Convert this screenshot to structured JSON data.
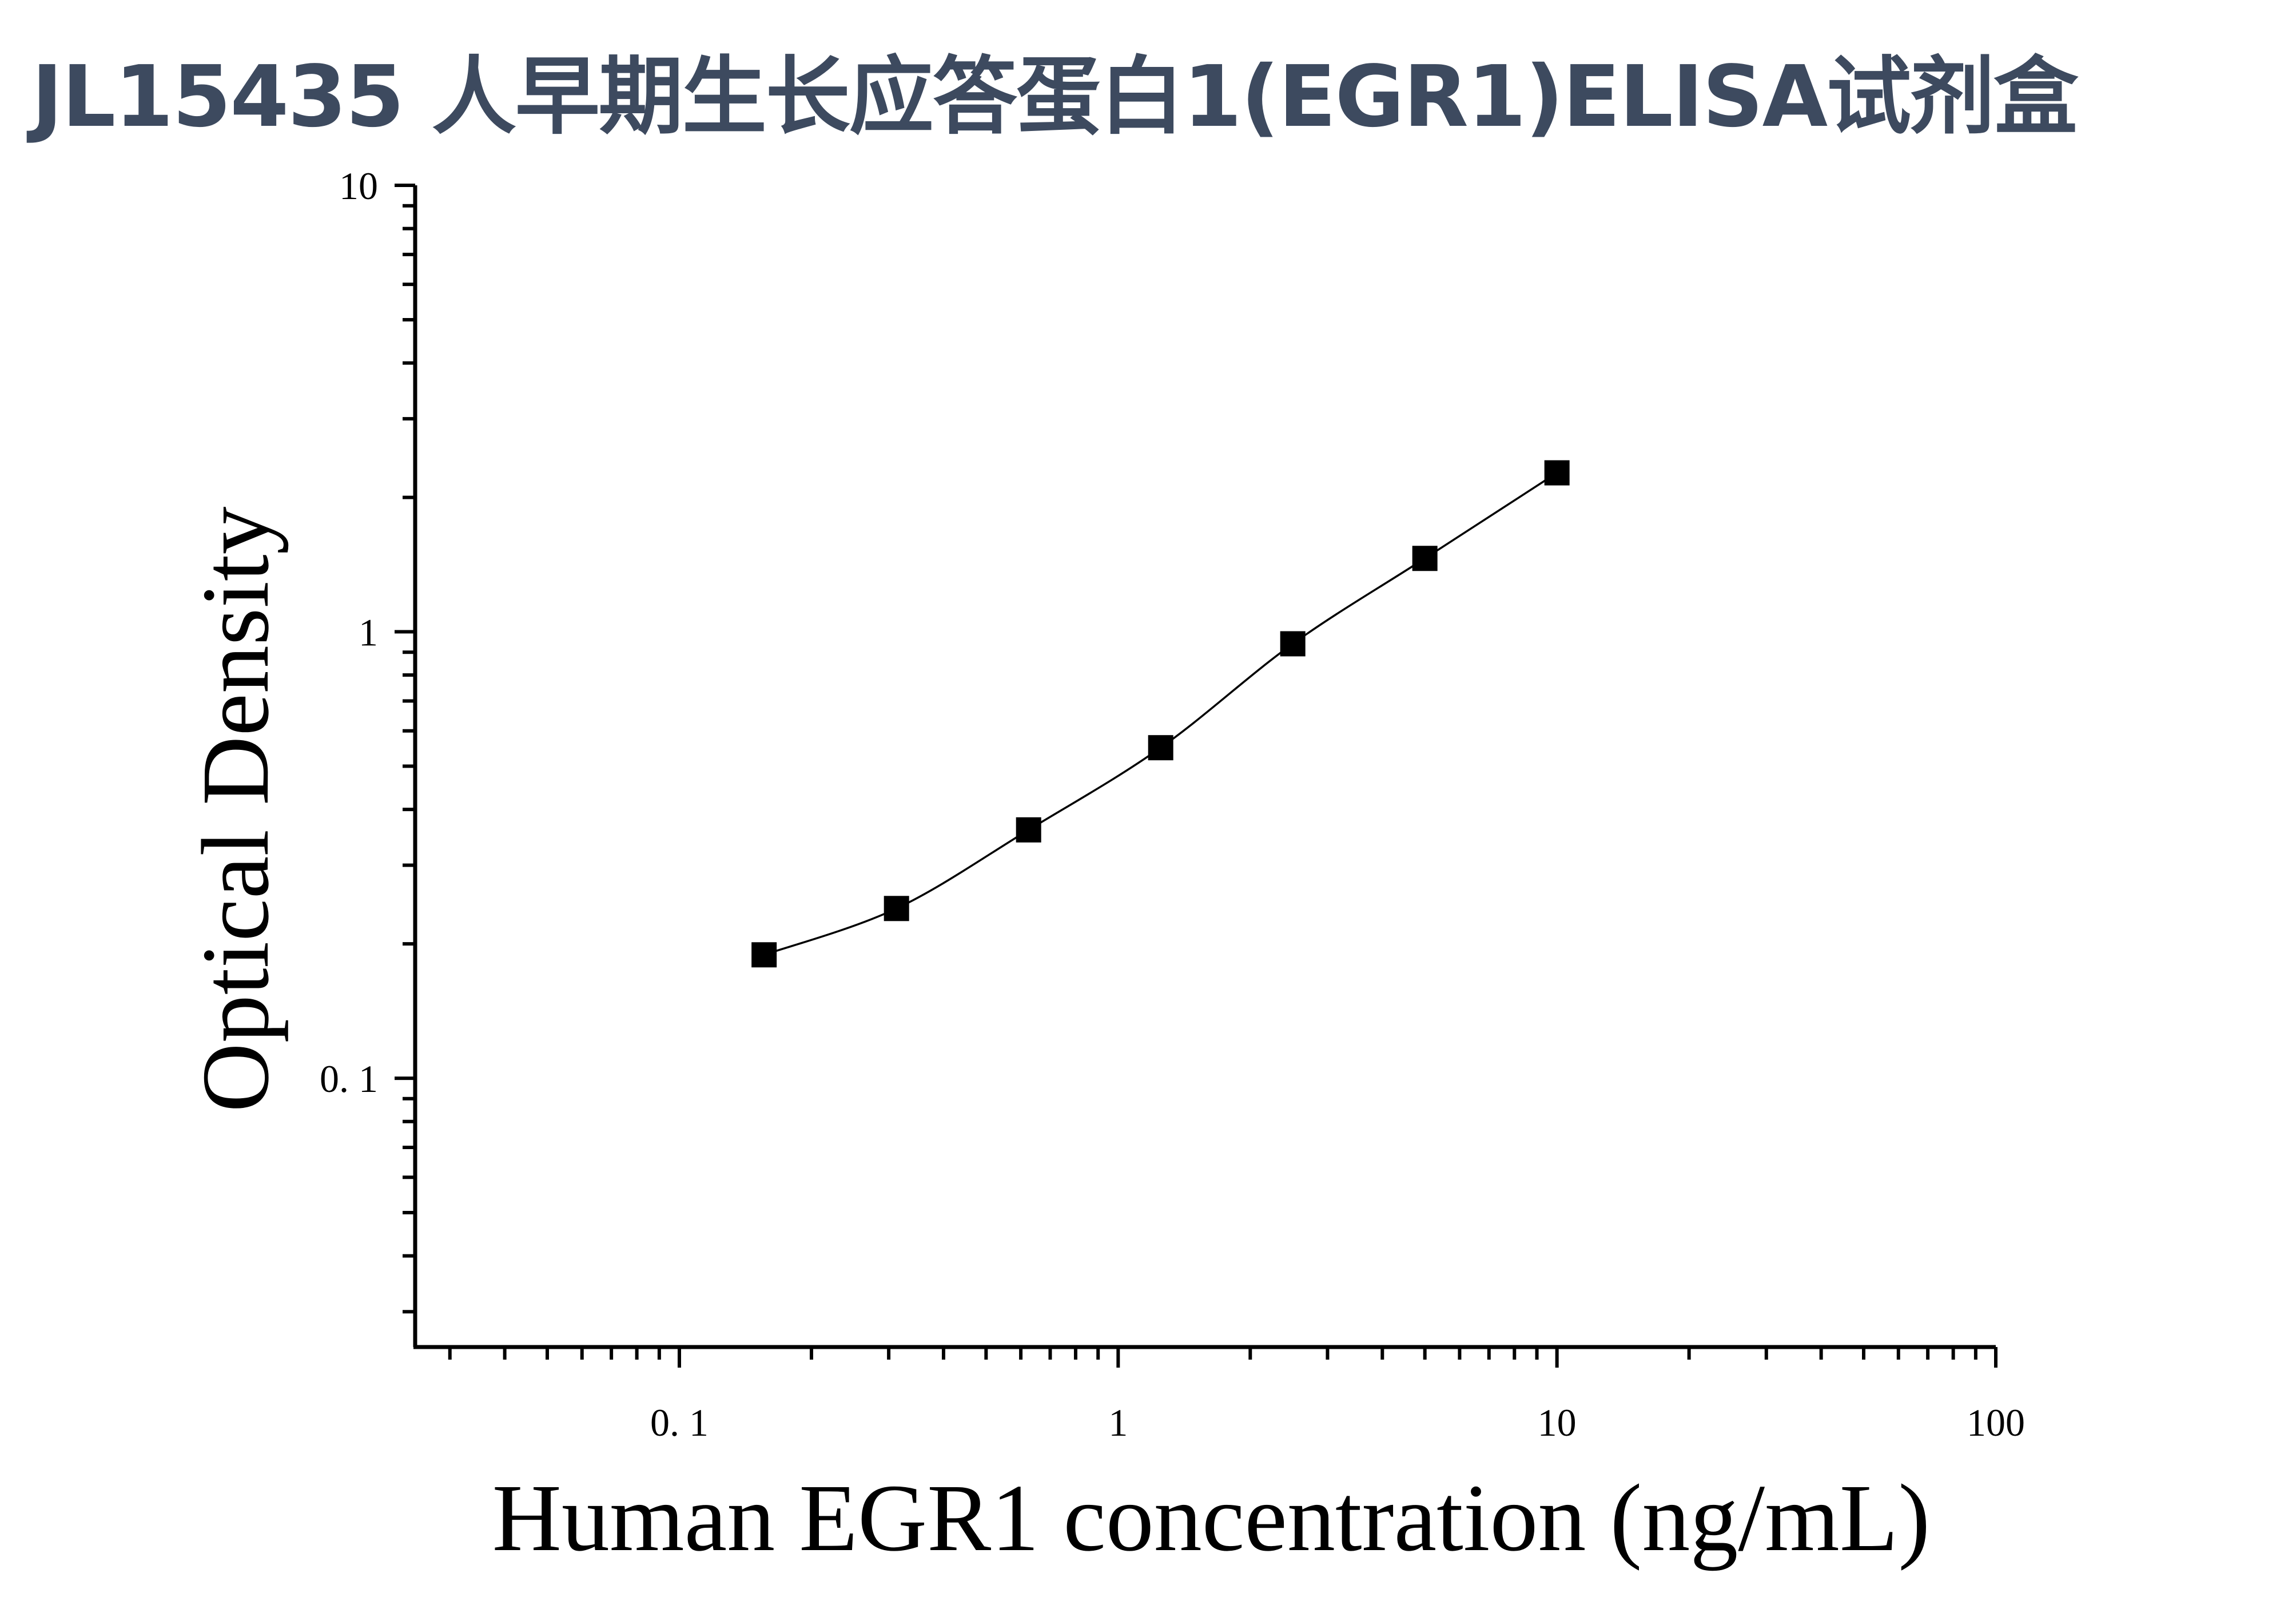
{
  "title": "JL15435 人早期生长应答蛋白1(EGR1)ELISA试剂盒",
  "chart_data": {
    "type": "scatter",
    "xlabel": "Human EGR1 concentration (ng/mL)",
    "ylabel": "Optical Density",
    "xscale": "log",
    "yscale": "log",
    "xlim": [
      0.025,
      100
    ],
    "ylim": [
      0.025,
      10
    ],
    "xticks": [
      0.1,
      1,
      10,
      100
    ],
    "xtick_labels": [
      "0. 1",
      "1",
      "10",
      "100"
    ],
    "yticks": [
      0.1,
      1,
      10
    ],
    "ytick_labels": [
      "0. 1",
      "1",
      "10"
    ],
    "grid": false,
    "fit_line": true,
    "marker": "square",
    "series": [
      {
        "x": [
          0.156,
          0.3125,
          0.625,
          1.25,
          2.5,
          5,
          10
        ],
        "y": [
          0.189,
          0.24,
          0.36,
          0.55,
          0.94,
          1.46,
          2.27
        ]
      }
    ],
    "colors": {
      "marker": "#000000",
      "line": "#000000",
      "axis": "#000000",
      "title": "#3d4a5f"
    }
  }
}
